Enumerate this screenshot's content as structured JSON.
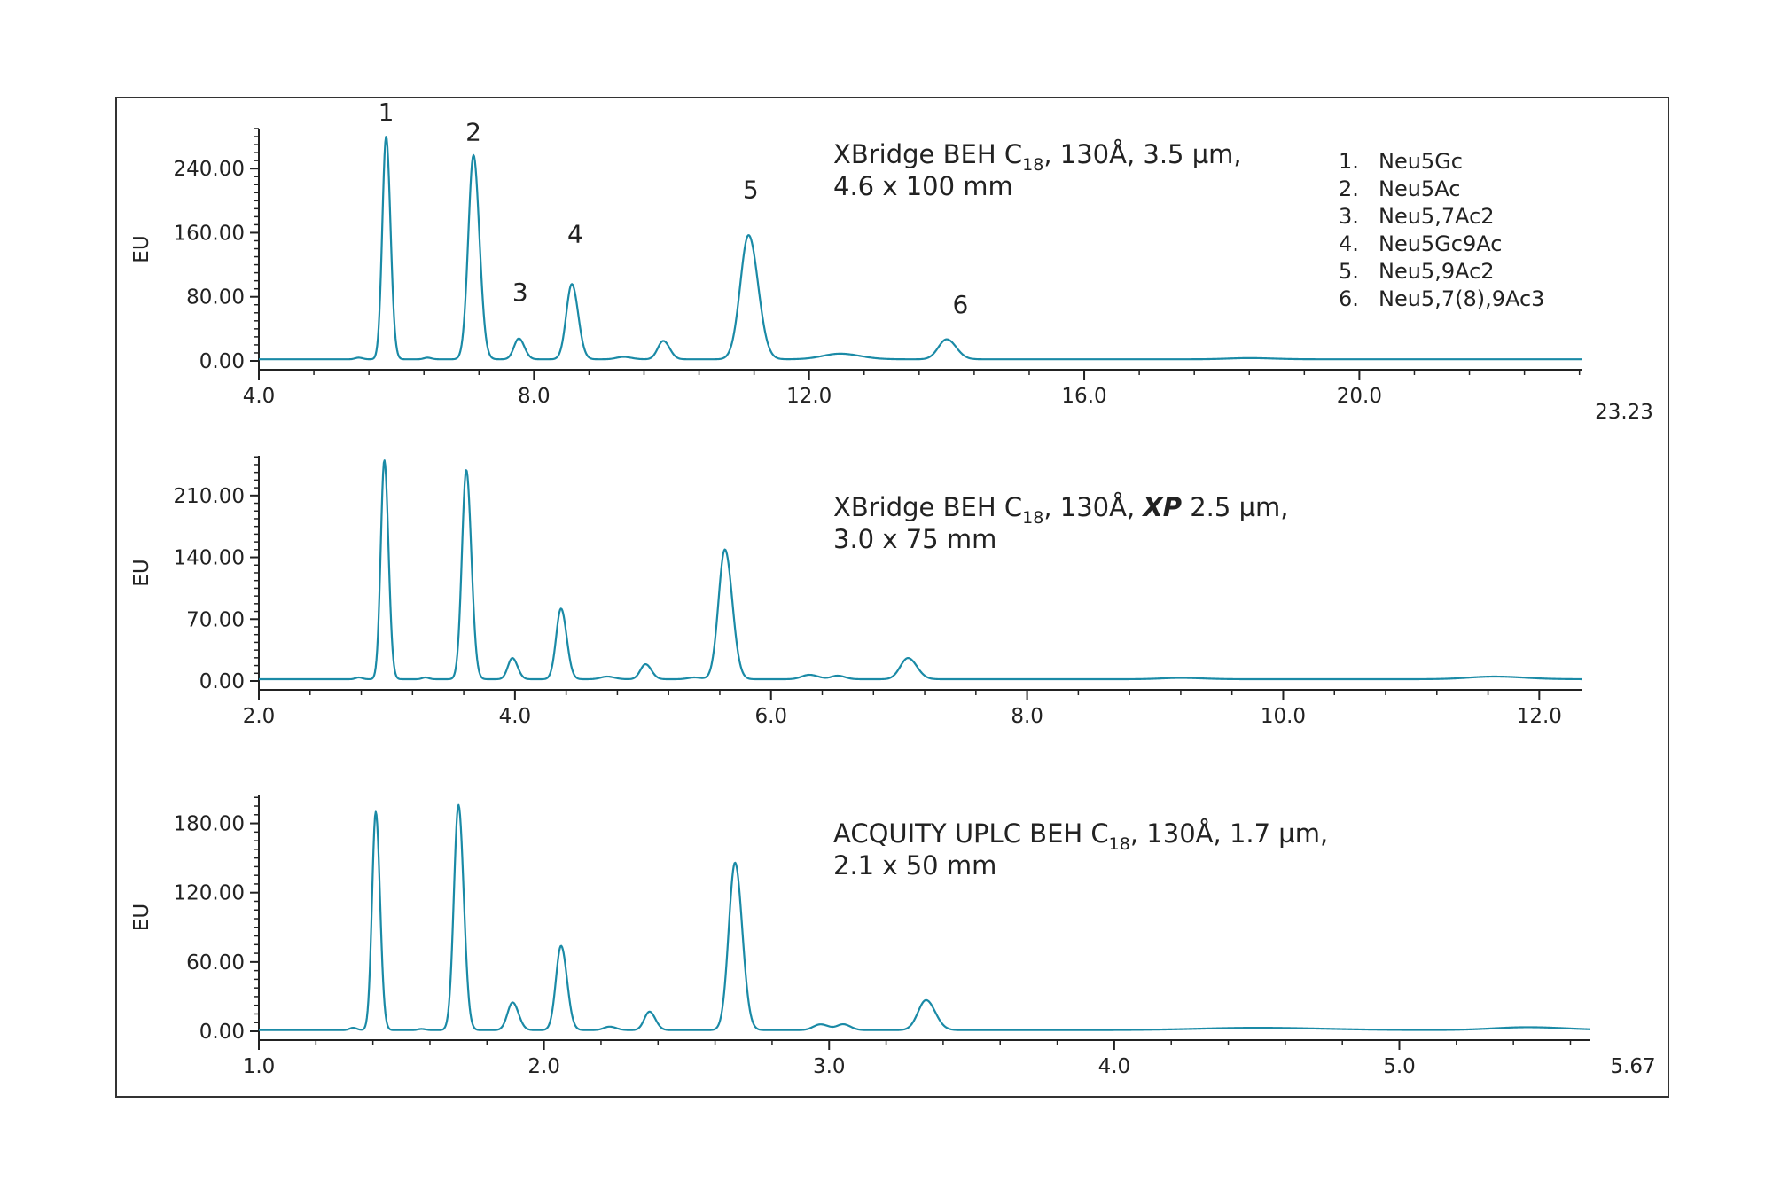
{
  "chart_data": [
    {
      "type": "line",
      "name_text": "XBridge BEH",
      "column": {
        "line1": {
          "pre": "XBridge BEH C",
          "sub": "18",
          "mid": ", 130Å, ",
          "bold": "",
          "post": "3.5 µm,"
        },
        "line2": "4.6 x 100 mm"
      },
      "ylabel": "EU",
      "xlim": [
        4.0,
        23.23
      ],
      "ylim": [
        0,
        290
      ],
      "xticks": [
        4.0,
        8.0,
        12.0,
        16.0,
        20.0
      ],
      "xtick_labels": [
        "4.0",
        "8.0",
        "12.0",
        "16.0",
        "20.0"
      ],
      "x_end_label": "23.23",
      "yticks": [
        0,
        80,
        160,
        240
      ],
      "ytick_labels": [
        "0.00",
        "80.00",
        "160.00",
        "240.00"
      ],
      "baseline": 2,
      "peaks": [
        {
          "x": 5.45,
          "h": 2,
          "w": 0.05
        },
        {
          "x": 5.85,
          "h": 278,
          "w": 0.055
        },
        {
          "x": 6.45,
          "h": 2,
          "w": 0.05
        },
        {
          "x": 7.12,
          "h": 255,
          "w": 0.075
        },
        {
          "x": 7.78,
          "h": 26,
          "w": 0.07
        },
        {
          "x": 8.55,
          "h": 94,
          "w": 0.08
        },
        {
          "x": 9.3,
          "h": 3,
          "w": 0.1
        },
        {
          "x": 9.88,
          "h": 23,
          "w": 0.08
        },
        {
          "x": 11.12,
          "h": 155,
          "w": 0.12
        },
        {
          "x": 12.45,
          "h": 7,
          "w": 0.25
        },
        {
          "x": 14.0,
          "h": 25,
          "w": 0.12
        },
        {
          "x": 18.4,
          "h": 1.5,
          "w": 0.3
        }
      ],
      "peak_labels": [
        {
          "text": "1",
          "x": 5.85,
          "y": 300
        },
        {
          "text": "2",
          "x": 7.12,
          "y": 275
        },
        {
          "text": "3",
          "x": 7.8,
          "y": 75
        },
        {
          "text": "4",
          "x": 8.6,
          "y": 148
        },
        {
          "text": "5",
          "x": 11.15,
          "y": 203
        },
        {
          "text": "6",
          "x": 14.2,
          "y": 60
        }
      ],
      "legend": [
        "1.  Neu5Gc",
        "2.  Neu5Ac",
        "3.  Neu5,7Ac2",
        "4.  Neu5Gc9Ac",
        "5.  Neu5,9Ac2",
        "6.  Neu5,7(8),9Ac3"
      ]
    },
    {
      "type": "line",
      "column": {
        "line1": {
          "pre": "XBridge BEH C",
          "sub": "18",
          "mid": ", 130Å, ",
          "bold": "XP",
          "post": " 2.5 µm,"
        },
        "line2": "3.0 x 75 mm"
      },
      "ylabel": "EU",
      "xlim": [
        2.0,
        12.33
      ],
      "ylim": [
        0,
        255
      ],
      "xticks": [
        2.0,
        4.0,
        6.0,
        8.0,
        10.0,
        12.0
      ],
      "xtick_labels": [
        "2.0",
        "4.0",
        "6.0",
        "8.0",
        "10.0",
        "12.0"
      ],
      "x_end_label": "",
      "yticks": [
        0,
        70,
        140,
        210
      ],
      "ytick_labels": [
        "0.00",
        "70.00",
        "140.00",
        "210.00"
      ],
      "baseline": 2,
      "peaks": [
        {
          "x": 2.78,
          "h": 2,
          "w": 0.025
        },
        {
          "x": 2.98,
          "h": 248,
          "w": 0.028
        },
        {
          "x": 3.3,
          "h": 2,
          "w": 0.025
        },
        {
          "x": 3.62,
          "h": 237,
          "w": 0.034
        },
        {
          "x": 3.98,
          "h": 24,
          "w": 0.035
        },
        {
          "x": 4.36,
          "h": 80,
          "w": 0.038
        },
        {
          "x": 4.72,
          "h": 3,
          "w": 0.05
        },
        {
          "x": 5.02,
          "h": 17,
          "w": 0.04
        },
        {
          "x": 5.4,
          "h": 2,
          "w": 0.05
        },
        {
          "x": 5.64,
          "h": 147,
          "w": 0.05
        },
        {
          "x": 6.3,
          "h": 5,
          "w": 0.06
        },
        {
          "x": 6.52,
          "h": 4,
          "w": 0.05
        },
        {
          "x": 7.07,
          "h": 24,
          "w": 0.06
        },
        {
          "x": 9.2,
          "h": 1.5,
          "w": 0.15
        },
        {
          "x": 11.65,
          "h": 3,
          "w": 0.2
        }
      ],
      "peak_labels": [],
      "legend": []
    },
    {
      "type": "line",
      "column": {
        "line1": {
          "pre": "ACQUITY UPLC BEH C",
          "sub": "18",
          "mid": ", 130Å, ",
          "bold": "",
          "post": "1.7 µm,"
        },
        "line2": "2.1 x 50 mm"
      },
      "ylabel": "EU",
      "xlim": [
        1.0,
        5.67
      ],
      "ylim": [
        0,
        205
      ],
      "xticks": [
        1.0,
        2.0,
        3.0,
        4.0,
        5.0
      ],
      "xtick_labels": [
        "1.0",
        "2.0",
        "3.0",
        "4.0",
        "5.0"
      ],
      "x_end_label": "5.67",
      "yticks": [
        0,
        60,
        120,
        180
      ],
      "ytick_labels": [
        "0.00",
        "60.00",
        "120.00",
        "180.00"
      ],
      "baseline": 1,
      "peaks": [
        {
          "x": 1.33,
          "h": 2,
          "w": 0.012
        },
        {
          "x": 1.41,
          "h": 189,
          "w": 0.013
        },
        {
          "x": 1.57,
          "h": 1,
          "w": 0.012
        },
        {
          "x": 1.7,
          "h": 195,
          "w": 0.016
        },
        {
          "x": 1.89,
          "h": 24,
          "w": 0.018
        },
        {
          "x": 2.06,
          "h": 73,
          "w": 0.018
        },
        {
          "x": 2.23,
          "h": 3,
          "w": 0.02
        },
        {
          "x": 2.37,
          "h": 16,
          "w": 0.018
        },
        {
          "x": 2.67,
          "h": 145,
          "w": 0.022
        },
        {
          "x": 2.97,
          "h": 5,
          "w": 0.025
        },
        {
          "x": 3.05,
          "h": 5,
          "w": 0.022
        },
        {
          "x": 3.34,
          "h": 26,
          "w": 0.028
        },
        {
          "x": 4.5,
          "h": 2,
          "w": 0.2
        },
        {
          "x": 5.45,
          "h": 2.5,
          "w": 0.12
        }
      ],
      "peak_labels": [],
      "legend": []
    }
  ],
  "colors": {
    "trace": "#1a8aa6",
    "axis": "#222222",
    "frame": "#333333"
  }
}
